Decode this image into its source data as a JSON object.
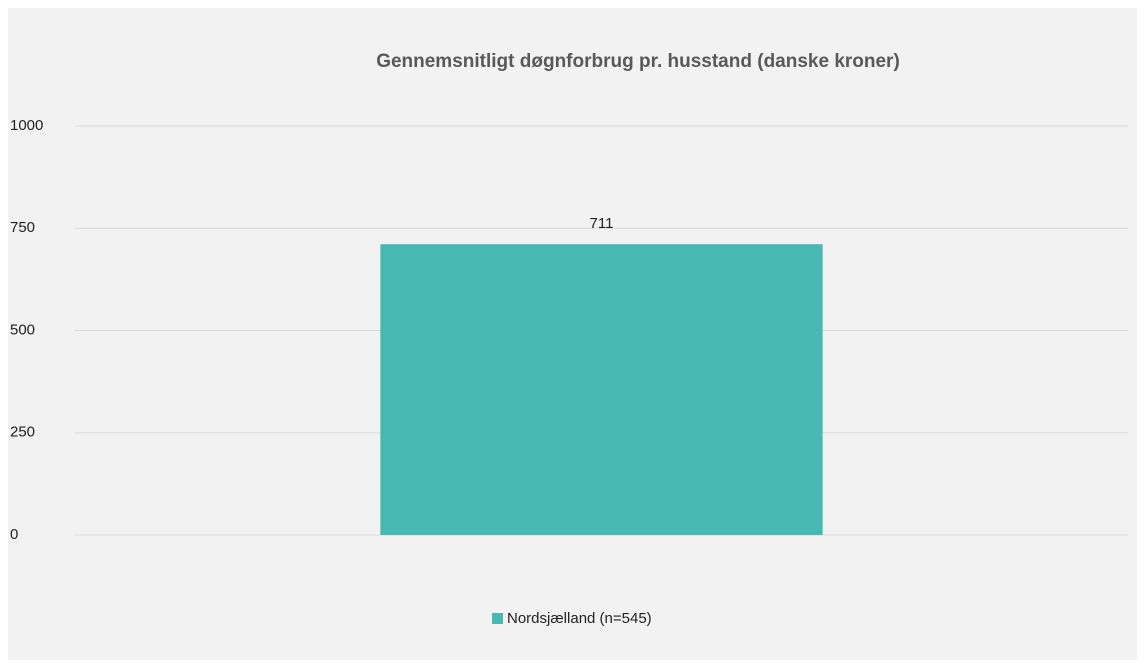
{
  "chart_data": {
    "type": "bar",
    "title": "Gennemsnitligt døgnforbrug pr. husstand (danske kroner)",
    "categories": [
      null
    ],
    "series": [
      {
        "name": "Nordsjælland (n=545)",
        "color": "#48b8b2",
        "values": [
          711
        ]
      }
    ],
    "ylim": [
      0,
      1000
    ],
    "yticks": [
      0,
      250,
      500,
      750,
      1000
    ],
    "grid": true,
    "legend": "bottom",
    "data_labels": true
  }
}
